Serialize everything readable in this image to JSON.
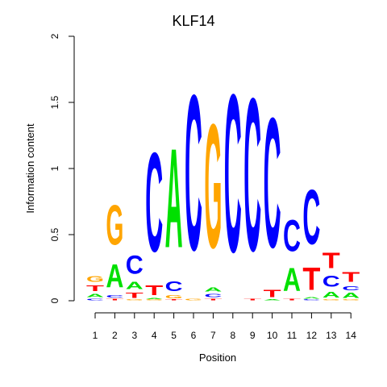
{
  "chart_data": {
    "type": "sequence-logo",
    "title": "KLF14",
    "xlabel": "Position",
    "ylabel": "Information content",
    "ylim": [
      0,
      2
    ],
    "yticks": [
      0,
      0.5,
      1,
      1.5,
      2
    ],
    "ytick_labels": [
      "0",
      "0.5",
      "1",
      "1.5",
      "2"
    ],
    "positions": [
      1,
      2,
      3,
      4,
      5,
      6,
      7,
      8,
      9,
      10,
      11,
      12,
      13,
      14
    ],
    "position_labels": [
      "1",
      "2",
      "3",
      "4",
      "5",
      "6",
      "7",
      "8",
      "9",
      "10",
      "11",
      "12",
      "13",
      "14"
    ],
    "base_colors": {
      "A": "#00e000",
      "C": "#0000ff",
      "G": "#ffa500",
      "T": "#ff0000"
    },
    "columns": [
      [
        {
          "base": "C",
          "height": 0.02
        },
        {
          "base": "A",
          "height": 0.04
        },
        {
          "base": "T",
          "height": 0.07
        },
        {
          "base": "G",
          "height": 0.07
        }
      ],
      [
        {
          "base": "T",
          "height": 0.02
        },
        {
          "base": "C",
          "height": 0.03
        },
        {
          "base": "A",
          "height": 0.28
        },
        {
          "base": "G",
          "height": 0.48
        }
      ],
      [
        {
          "base": "G",
          "height": 0.01
        },
        {
          "base": "T",
          "height": 0.06
        },
        {
          "base": "A",
          "height": 0.09
        },
        {
          "base": "C",
          "height": 0.22
        }
      ],
      [
        {
          "base": "G",
          "height": 0.01
        },
        {
          "base": "A",
          "height": 0.01
        },
        {
          "base": "T",
          "height": 0.12
        },
        {
          "base": "C",
          "height": 1.2
        }
      ],
      [
        {
          "base": "T",
          "height": 0.01
        },
        {
          "base": "G",
          "height": 0.04
        },
        {
          "base": "C",
          "height": 0.12
        },
        {
          "base": "A",
          "height": 1.2
        }
      ],
      [
        {
          "base": "G",
          "height": 0.02
        },
        {
          "base": "C",
          "height": 1.88
        }
      ],
      [
        {
          "base": "T",
          "height": 0.02
        },
        {
          "base": "C",
          "height": 0.04
        },
        {
          "base": "A",
          "height": 0.05
        },
        {
          "base": "G",
          "height": 1.5
        }
      ],
      [
        {
          "base": "C",
          "height": 1.91
        }
      ],
      [
        {
          "base": "T",
          "height": 0.02
        },
        {
          "base": "C",
          "height": 1.85
        }
      ],
      [
        {
          "base": "A",
          "height": 0.01
        },
        {
          "base": "T",
          "height": 0.09
        },
        {
          "base": "C",
          "height": 1.57
        }
      ],
      [
        {
          "base": "T",
          "height": 0.02
        },
        {
          "base": "A",
          "height": 0.28
        },
        {
          "base": "C",
          "height": 0.38
        }
      ],
      [
        {
          "base": "C",
          "height": 0.01
        },
        {
          "base": "A",
          "height": 0.02
        },
        {
          "base": "T",
          "height": 0.27
        },
        {
          "base": "C",
          "height": 0.66
        }
      ],
      [
        {
          "base": "G",
          "height": 0.01
        },
        {
          "base": "A",
          "height": 0.07
        },
        {
          "base": "C",
          "height": 0.13
        },
        {
          "base": "T",
          "height": 0.19
        }
      ],
      [
        {
          "base": "G",
          "height": 0.01
        },
        {
          "base": "A",
          "height": 0.06
        },
        {
          "base": "C",
          "height": 0.05
        },
        {
          "base": "T",
          "height": 0.12
        }
      ]
    ]
  }
}
